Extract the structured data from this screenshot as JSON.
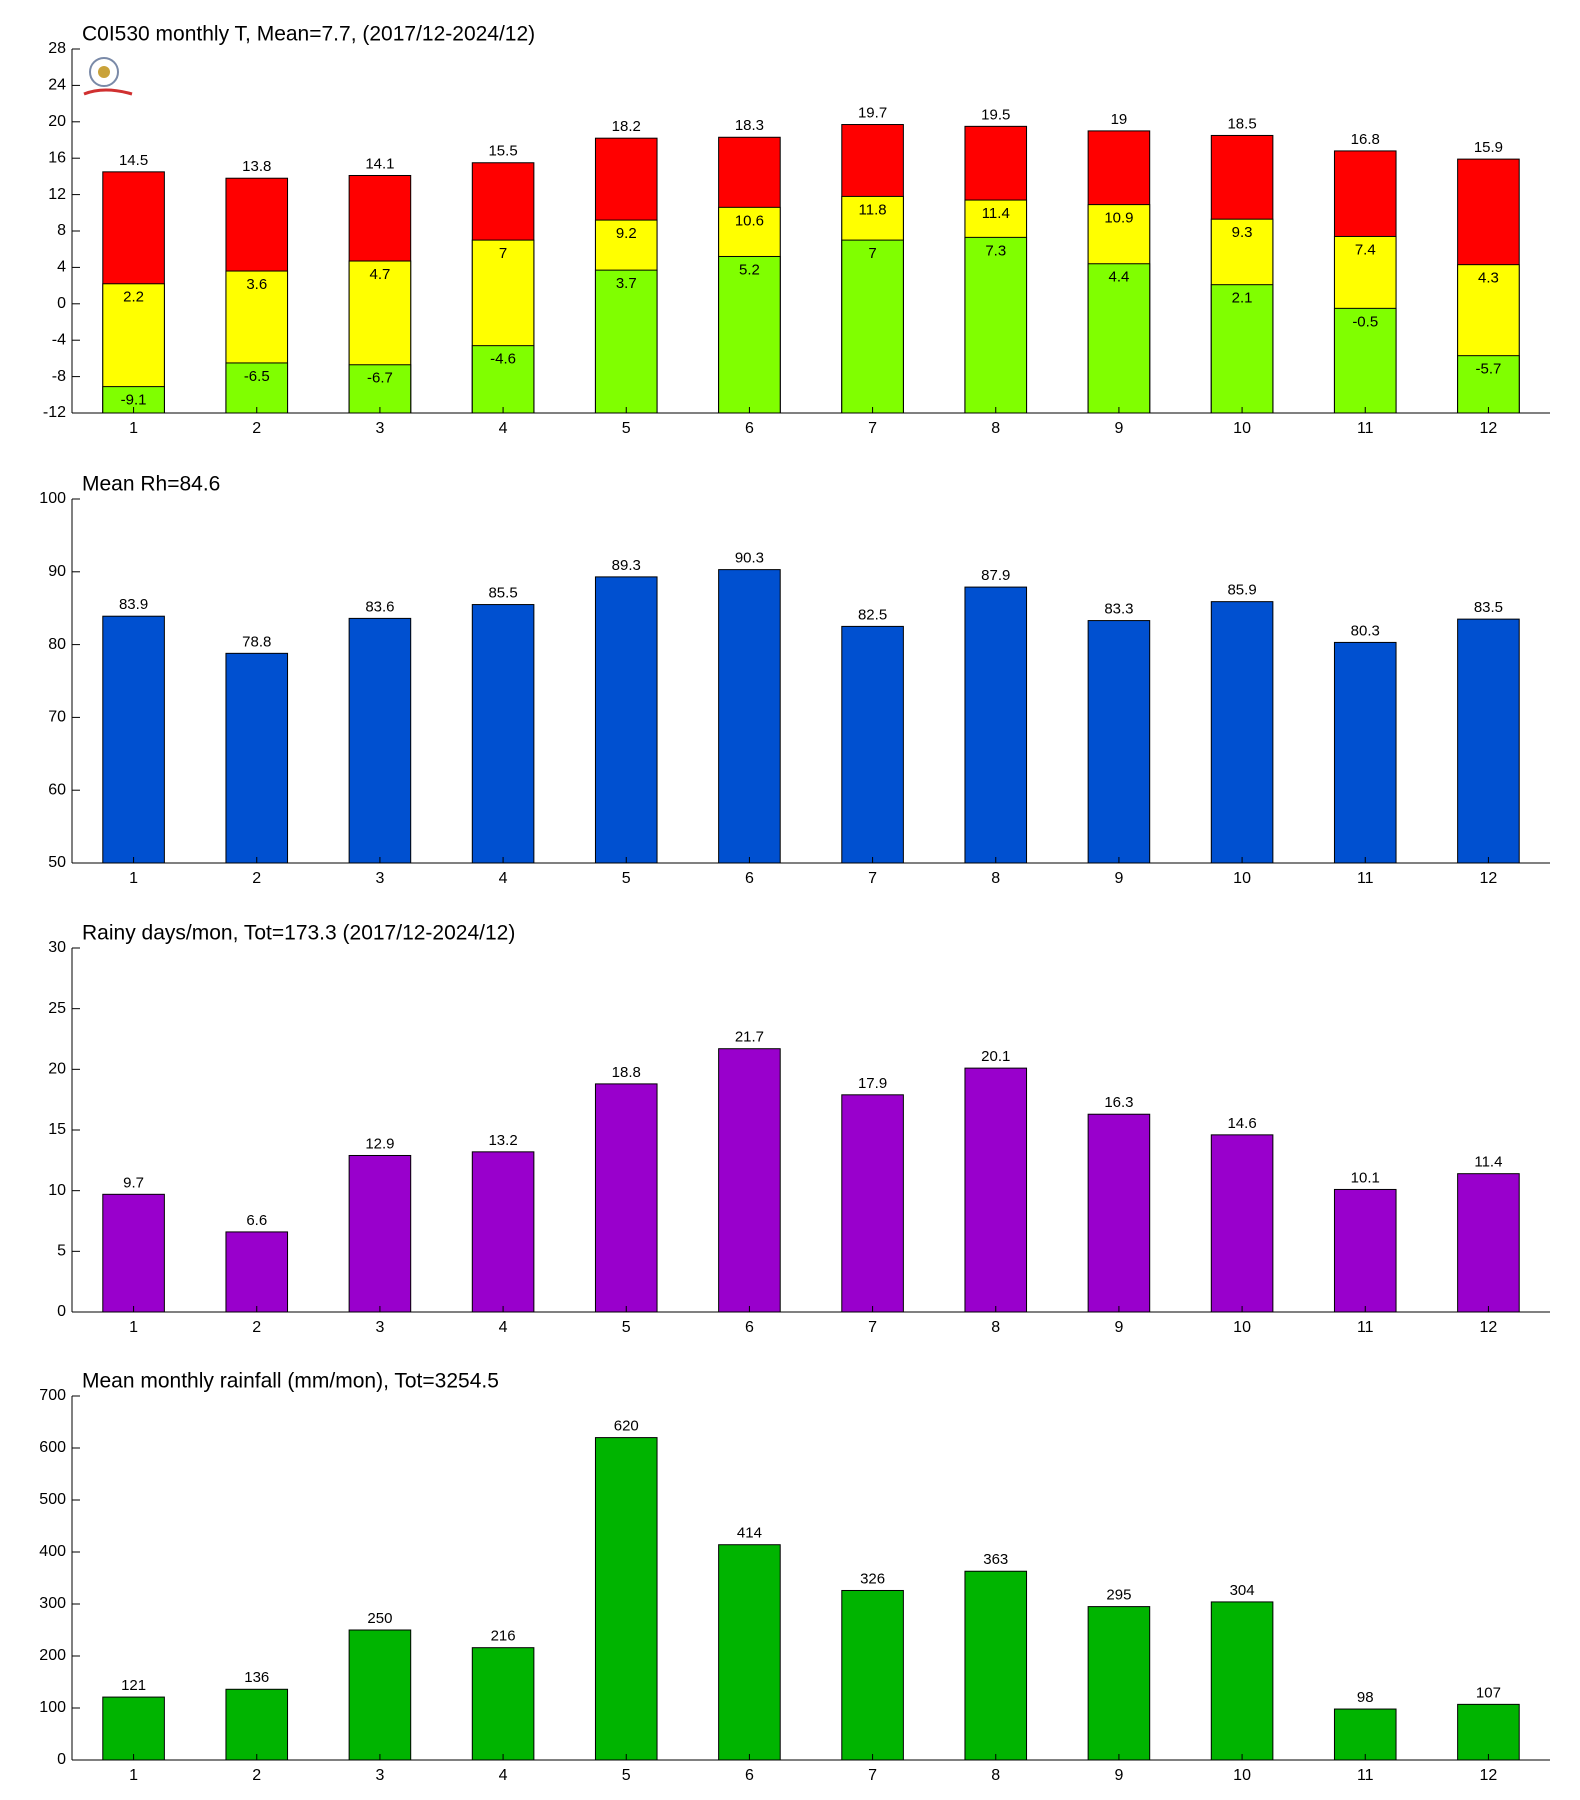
{
  "chart_data": [
    {
      "type": "bar",
      "barmode": "overlay",
      "title": "C0I530 monthly T, Mean=7.7, (2017/12-2024/12)",
      "categories": [
        "1",
        "2",
        "3",
        "4",
        "5",
        "6",
        "7",
        "8",
        "9",
        "10",
        "11",
        "12"
      ],
      "series": [
        {
          "color": "#ff0000",
          "values": [
            14.5,
            13.8,
            14.1,
            15.5,
            18.2,
            18.3,
            19.7,
            19.5,
            19,
            18.5,
            16.8,
            15.9
          ]
        },
        {
          "color": "#ffff00",
          "values": [
            2.2,
            3.6,
            4.7,
            7,
            9.2,
            10.6,
            11.8,
            11.4,
            10.9,
            9.3,
            7.4,
            4.3
          ]
        },
        {
          "color": "#80ff00",
          "values": [
            -9.1,
            -6.5,
            -6.7,
            -4.6,
            3.7,
            5.2,
            7,
            7.3,
            4.4,
            2.1,
            -0.5,
            -5.7
          ]
        }
      ],
      "ylim": [
        -12,
        28
      ],
      "yticks": [
        -12,
        -8,
        -4,
        0,
        4,
        8,
        12,
        16,
        20,
        24,
        28
      ]
    },
    {
      "type": "bar",
      "title": "Mean Rh=84.6",
      "categories": [
        "1",
        "2",
        "3",
        "4",
        "5",
        "6",
        "7",
        "8",
        "9",
        "10",
        "11",
        "12"
      ],
      "values": [
        83.9,
        78.8,
        83.6,
        85.5,
        89.3,
        90.3,
        82.5,
        87.9,
        83.3,
        85.9,
        80.3,
        83.5
      ],
      "color": "#0050d0",
      "ylim": [
        50,
        100
      ],
      "yticks": [
        50,
        60,
        70,
        80,
        90,
        100
      ]
    },
    {
      "type": "bar",
      "title": "Rainy days/mon, Tot=173.3 (2017/12-2024/12)",
      "categories": [
        "1",
        "2",
        "3",
        "4",
        "5",
        "6",
        "7",
        "8",
        "9",
        "10",
        "11",
        "12"
      ],
      "values": [
        9.7,
        6.6,
        12.9,
        13.2,
        18.8,
        21.7,
        17.9,
        20.1,
        16.3,
        14.6,
        10.1,
        11.4
      ],
      "color": "#9900cc",
      "ylim": [
        0,
        30
      ],
      "yticks": [
        0,
        5,
        10,
        15,
        20,
        25,
        30
      ]
    },
    {
      "type": "bar",
      "title": "Mean monthly rainfall (mm/mon), Tot=3254.5",
      "categories": [
        "1",
        "2",
        "3",
        "4",
        "5",
        "6",
        "7",
        "8",
        "9",
        "10",
        "11",
        "12"
      ],
      "values": [
        121,
        136,
        250,
        216,
        620,
        414,
        326,
        363,
        295,
        304,
        98,
        107
      ],
      "color": "#00b400",
      "ylim": [
        0,
        700
      ],
      "yticks": [
        0,
        100,
        200,
        300,
        400,
        500,
        600,
        700
      ]
    }
  ]
}
